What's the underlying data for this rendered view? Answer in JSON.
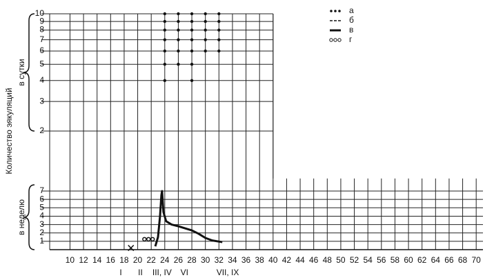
{
  "ylabel": "Количество эякуляций",
  "legend": [
    {
      "name": "а",
      "style": "dots"
    },
    {
      "name": "б",
      "style": "dashed"
    },
    {
      "name": "в",
      "style": "solid"
    },
    {
      "name": "г",
      "style": "circles"
    }
  ],
  "chart_data": [
    {
      "type": "scatter",
      "ylabel": "в сутки",
      "log_scale_y": true,
      "color": "#111",
      "xlim": [
        7,
        40
      ],
      "ylim": [
        2,
        10
      ],
      "yticks": [
        2,
        3,
        4,
        5,
        6,
        7,
        8,
        9,
        10
      ],
      "series": [
        {
          "name": "а",
          "color": "#111",
          "x": [
            24,
            26,
            28,
            30,
            32,
            24,
            26,
            28,
            30,
            32,
            24,
            26,
            28,
            30,
            32,
            24,
            26,
            28,
            30,
            32,
            24,
            26,
            28,
            30,
            32,
            24,
            26,
            28,
            24,
            28
          ],
          "values": [
            10,
            10,
            10,
            10,
            10,
            9,
            9,
            9,
            9,
            9,
            8,
            8,
            8,
            8,
            8,
            7,
            7,
            7,
            7,
            7,
            6,
            6,
            6,
            6,
            6,
            5,
            5,
            5,
            4,
            4
          ]
        }
      ]
    },
    {
      "type": "line",
      "ylabel": "в неделю",
      "color": "#111",
      "xlim": [
        7,
        71
      ],
      "ylim": [
        0,
        8.5
      ],
      "xticks": [
        10,
        12,
        14,
        16,
        18,
        20,
        22,
        24,
        26,
        28,
        30,
        32,
        34,
        36,
        38,
        40,
        42,
        44,
        46,
        48,
        50,
        52,
        54,
        56,
        58,
        60,
        62,
        64,
        66,
        68,
        70
      ],
      "yticks": [
        1,
        2,
        3,
        4,
        5,
        6,
        7
      ],
      "series": [
        {
          "name": "в",
          "color": "#111",
          "x": [
            22.6,
            23.0,
            23.3,
            23.5,
            23.6,
            23.8,
            24.2,
            25,
            26,
            28,
            29,
            30,
            31,
            32.5
          ],
          "values": [
            0.4,
            1.5,
            4,
            6.5,
            7,
            4.5,
            3.4,
            3.0,
            2.8,
            2.3,
            1.9,
            1.4,
            1.1,
            0.9
          ]
        },
        {
          "name": "г",
          "color": "#111",
          "x": [
            21,
            21.6,
            22.2
          ],
          "values": [
            1,
            1,
            1
          ]
        }
      ],
      "markers": [
        {
          "x": 19,
          "y": 0.2
        }
      ],
      "stage_labels": [
        {
          "label": "I",
          "x": 17.5
        },
        {
          "label": "II",
          "x": 20.4
        },
        {
          "label": "III, IV",
          "x": 23.6
        },
        {
          "label": "VI",
          "x": 26.9
        },
        {
          "label": "VII, IX",
          "x": 33.3
        }
      ]
    }
  ]
}
